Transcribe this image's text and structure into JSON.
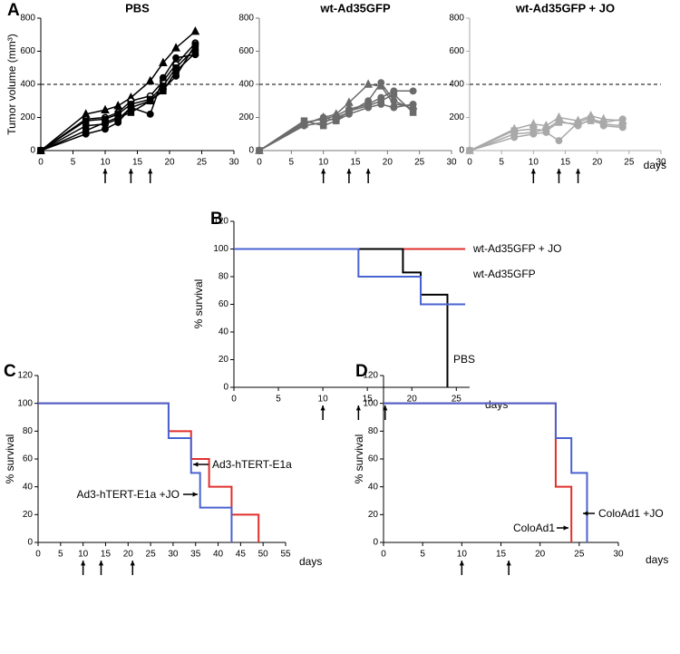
{
  "chart_data": [
    {
      "type": "line",
      "panel_label": "A",
      "title": "PBS",
      "y_label": "Tumor volume (mm³)",
      "x": [
        0,
        7,
        10,
        12,
        14,
        17,
        19,
        21,
        24
      ],
      "series": [
        {
          "color": "#000000",
          "values": [
            0,
            220,
            245,
            270,
            320,
            420,
            530,
            620,
            720
          ]
        },
        {
          "color": "#000000",
          "values": [
            0,
            190,
            200,
            230,
            300,
            330,
            420,
            520,
            650
          ]
        },
        {
          "color": "#000000",
          "values": [
            0,
            150,
            160,
            190,
            260,
            300,
            370,
            450,
            640
          ]
        },
        {
          "color": "#000000",
          "values": [
            0,
            120,
            170,
            200,
            230,
            300,
            360,
            480,
            590
          ]
        },
        {
          "color": "#000000",
          "values": [
            0,
            100,
            130,
            170,
            260,
            220,
            440,
            560,
            580
          ]
        },
        {
          "color": "#000000",
          "values": [
            0,
            180,
            190,
            220,
            280,
            310,
            390,
            500,
            620
          ]
        }
      ],
      "reference_line": 400,
      "arrows": [
        10,
        14,
        17
      ],
      "xlim": [
        0,
        30
      ],
      "xticks": [
        0,
        5,
        10,
        15,
        20,
        25,
        30
      ],
      "ylim": [
        0,
        800
      ],
      "yticks": [
        0,
        200,
        400,
        600,
        800
      ]
    },
    {
      "type": "line",
      "title": "wt-Ad35GFP",
      "x": [
        0,
        7,
        10,
        12,
        14,
        17,
        19,
        21,
        24
      ],
      "series": [
        {
          "color": "#6b6b6b",
          "values": [
            0,
            160,
            200,
            220,
            290,
            400,
            390,
            280,
            270
          ]
        },
        {
          "color": "#6b6b6b",
          "values": [
            0,
            150,
            170,
            200,
            230,
            300,
            410,
            300,
            250
          ]
        },
        {
          "color": "#6b6b6b",
          "values": [
            0,
            170,
            190,
            210,
            250,
            280,
            320,
            360,
            360
          ]
        },
        {
          "color": "#6b6b6b",
          "values": [
            0,
            180,
            150,
            180,
            240,
            270,
            300,
            340,
            230
          ]
        },
        {
          "color": "#6b6b6b",
          "values": [
            0,
            160,
            200,
            180,
            220,
            260,
            280,
            260,
            280
          ]
        }
      ],
      "reference_line": 400,
      "arrows": [
        10,
        14,
        17
      ],
      "xlim": [
        0,
        30
      ],
      "xticks": [
        0,
        5,
        10,
        15,
        20,
        25,
        30
      ],
      "ylim": [
        0,
        800
      ],
      "yticks": [
        0,
        200,
        400,
        600,
        800
      ]
    },
    {
      "type": "line",
      "title": "wt-Ad35GFP + JO",
      "x_label": "days",
      "x": [
        0,
        7,
        10,
        12,
        14,
        17,
        19,
        21,
        24
      ],
      "series": [
        {
          "color": "#a9a9a9",
          "values": [
            0,
            130,
            160,
            150,
            200,
            180,
            210,
            190,
            180
          ]
        },
        {
          "color": "#a9a9a9",
          "values": [
            0,
            100,
            110,
            130,
            180,
            150,
            190,
            170,
            190
          ]
        },
        {
          "color": "#a9a9a9",
          "values": [
            0,
            80,
            100,
            110,
            60,
            170,
            200,
            150,
            140
          ]
        },
        {
          "color": "#a9a9a9",
          "values": [
            0,
            120,
            130,
            120,
            170,
            160,
            180,
            160,
            150
          ]
        }
      ],
      "reference_line": 400,
      "arrows": [
        10,
        14,
        17
      ],
      "xlim": [
        0,
        30
      ],
      "xticks": [
        0,
        5,
        10,
        15,
        20,
        25,
        30
      ],
      "ylim": [
        0,
        800
      ],
      "yticks": [
        0,
        200,
        400,
        600,
        800
      ]
    },
    {
      "type": "step",
      "panel_label": "B",
      "y_label": "% survival",
      "x_label": "days",
      "series": [
        {
          "name": "wt-Ad35GFP + JO",
          "color": "#e0302c",
          "x": [
            0,
            26
          ],
          "values": [
            100,
            100
          ]
        },
        {
          "name": "PBS",
          "color": "#000000",
          "x": [
            0,
            19,
            21,
            24
          ],
          "values": [
            100,
            83,
            67,
            0
          ]
        },
        {
          "name": "wt-Ad35GFP",
          "color": "#4a63d0",
          "x": [
            0,
            14,
            21,
            26
          ],
          "values": [
            100,
            80,
            60,
            60
          ]
        }
      ],
      "arrows": [
        10,
        14,
        17
      ],
      "xlim": [
        0,
        26.5
      ],
      "xticks": [
        0,
        5,
        10,
        15,
        20,
        25
      ],
      "ylim": [
        0,
        120
      ],
      "yticks": [
        0,
        20,
        40,
        60,
        80,
        100,
        120
      ]
    },
    {
      "type": "step",
      "panel_label": "C",
      "y_label": "% survival",
      "x_label": "days",
      "series": [
        {
          "name": "Ad3-hTERT-E1a",
          "color": "#e0302c",
          "x": [
            0,
            29,
            34,
            38,
            43,
            49
          ],
          "values": [
            100,
            80,
            60,
            40,
            20,
            0
          ]
        },
        {
          "name": "Ad3-hTERT-E1a +JO",
          "color": "#4a63d0",
          "x": [
            0,
            29,
            34,
            36,
            43
          ],
          "values": [
            100,
            75,
            50,
            25,
            0
          ]
        }
      ],
      "arrows": [
        10,
        14,
        21
      ],
      "xlim": [
        0,
        55
      ],
      "xticks": [
        0,
        5,
        10,
        15,
        20,
        25,
        30,
        35,
        40,
        45,
        50,
        55
      ],
      "ylim": [
        0,
        120
      ],
      "yticks": [
        0,
        20,
        40,
        60,
        80,
        100,
        120
      ]
    },
    {
      "type": "step",
      "panel_label": "D",
      "y_label": "% survival",
      "x_label": "days",
      "series": [
        {
          "name": "ColoAd1",
          "color": "#e0302c",
          "x": [
            0,
            22,
            24
          ],
          "values": [
            100,
            40,
            0
          ]
        },
        {
          "name": "ColoAd1 +JO",
          "color": "#4a63d0",
          "x": [
            0,
            22,
            24,
            26
          ],
          "values": [
            100,
            75,
            50,
            0
          ]
        }
      ],
      "arrows": [
        10,
        16
      ],
      "xlim": [
        0,
        30
      ],
      "xticks": [
        0,
        5,
        10,
        15,
        20,
        25,
        30
      ],
      "ylim": [
        0,
        120
      ],
      "yticks": [
        0,
        20,
        40,
        60,
        80,
        100,
        120
      ]
    }
  ]
}
